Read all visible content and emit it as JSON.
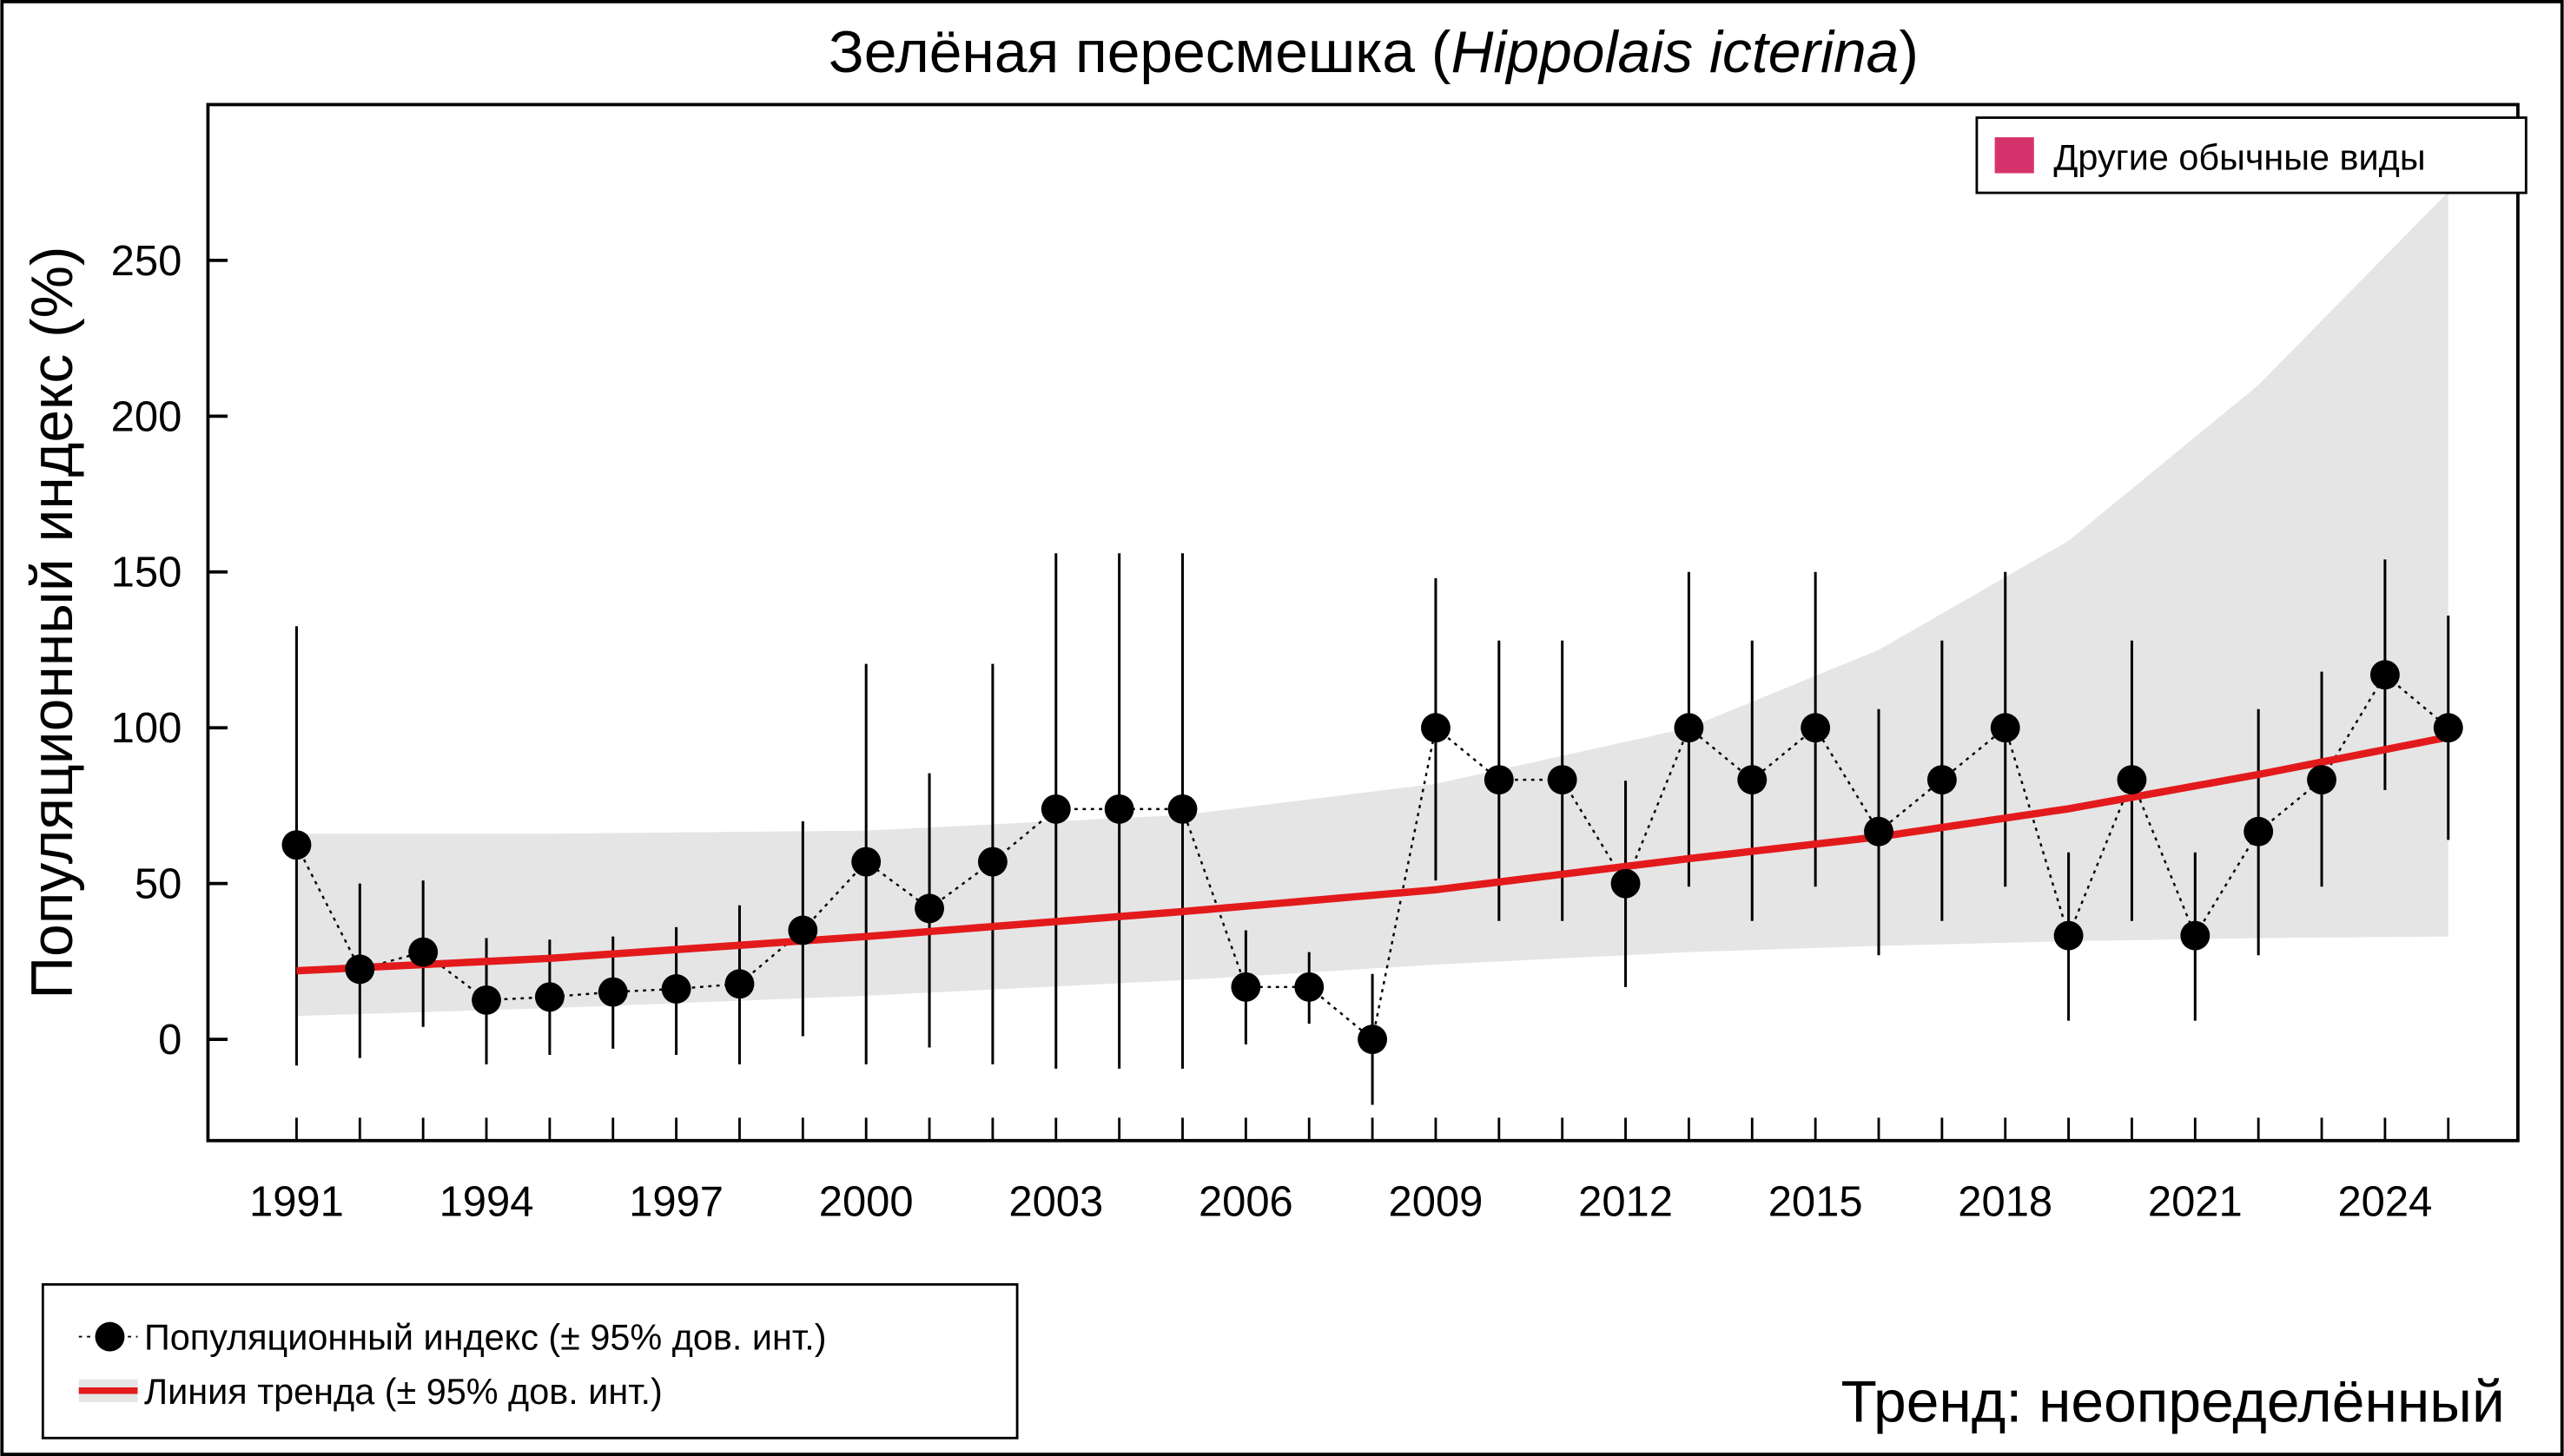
{
  "chart_data": {
    "type": "line",
    "title_main": "Зелёная пересмешка (",
    "title_italic": "Hippolais icterina",
    "title_end": ")",
    "ylabel": "Популяционный индекс (%)",
    "xlabel": "",
    "xlim": [
      1989.6,
      2026.1
    ],
    "ylim": [
      -32.5,
      300
    ],
    "yticks": [
      0,
      50,
      100,
      150,
      200,
      250
    ],
    "xtick_labels": [
      1991,
      1994,
      1997,
      2000,
      2003,
      2006,
      2009,
      2012,
      2015,
      2018,
      2021,
      2024
    ],
    "grid": false,
    "series": [
      {
        "name": "Популяционный индекс (± 95% дов. инт.)",
        "x": [
          1991,
          1992,
          1993,
          1994,
          1995,
          1996,
          1997,
          1998,
          1999,
          2000,
          2001,
          2002,
          2003,
          2004,
          2005,
          2006,
          2007,
          2008,
          2009,
          2010,
          2011,
          2012,
          2013,
          2014,
          2015,
          2016,
          2017,
          2018,
          2019,
          2020,
          2021,
          2022,
          2023,
          2024,
          2025
        ],
        "y": [
          62.4,
          22.5,
          28,
          12.6,
          13.6,
          15.2,
          16.2,
          17.8,
          35,
          57,
          42,
          57,
          73.9,
          73.9,
          73.9,
          16.8,
          16.8,
          0,
          100,
          83.3,
          83.3,
          50,
          100,
          83.3,
          100,
          66.7,
          83.3,
          100,
          33.3,
          83.3,
          33.3,
          66.7,
          83.3,
          117,
          100
        ],
        "lower": [
          -8.4,
          -6,
          4,
          -8,
          -5,
          -3,
          -5,
          -8,
          1,
          -8,
          -2.6,
          -8,
          -9.4,
          -9.4,
          -9.4,
          -1.6,
          5,
          -21,
          51,
          38,
          38,
          16.8,
          49,
          38,
          49,
          27,
          38,
          49,
          6,
          38,
          6,
          27,
          49,
          80,
          64
        ],
        "upper": [
          132.6,
          50,
          51,
          32.5,
          32,
          33,
          36,
          43,
          70,
          120.5,
          85.4,
          120.5,
          156,
          156,
          156,
          35,
          28,
          21,
          148,
          128,
          128,
          83,
          150,
          128,
          150,
          106,
          128,
          150,
          60,
          128,
          60,
          106,
          118,
          154,
          136
        ],
        "color": "#000000"
      },
      {
        "name": "Линия тренда (± 95% дов. инт.)",
        "x": [
          1991,
          1995,
          2000,
          2005,
          2009,
          2013,
          2016,
          2019,
          2022,
          2025
        ],
        "y": [
          22,
          26,
          33,
          41,
          48,
          58,
          65,
          74,
          85,
          97
        ],
        "band_lower": [
          7.5,
          10,
          14,
          19,
          24,
          28,
          30,
          31.5,
          32.5,
          33
        ],
        "band_upper": [
          66,
          66,
          67,
          72,
          82,
          100,
          125,
          160,
          210,
          272
        ],
        "color": "#e31a1c",
        "band_color": "#e5e5e5"
      }
    ],
    "legend": {
      "top_right": {
        "label": "Другие обычные виды",
        "color": "#d6336c"
      },
      "bottom_left": [
        "Популяционный индекс (± 95% дов. инт.)",
        "Линия тренда (± 95% дов. инт.)"
      ]
    },
    "annotation": "Тренд: неопределённый"
  }
}
